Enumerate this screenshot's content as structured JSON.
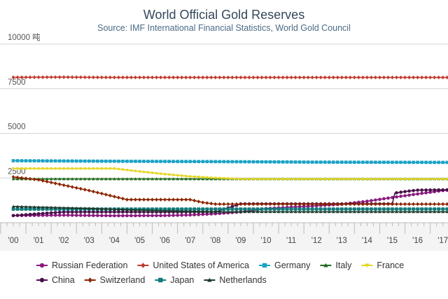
{
  "chart_data": {
    "type": "line",
    "title": "World Official Gold Reserves",
    "subtitle": "Source: IMF International Financial Statistics, World Gold Council",
    "ylabel": "10000 吨",
    "ylim": [
      0,
      10000
    ],
    "yticks": [
      2500,
      5000,
      7500,
      10000
    ],
    "ytick_labels": [
      "2500",
      "5000",
      "7500",
      "10000 吨"
    ],
    "x_start": 2000,
    "x_end": 2017.3,
    "xticks": [
      2000,
      2001,
      2002,
      2003,
      2004,
      2005,
      2006,
      2007,
      2008,
      2009,
      2010,
      2011,
      2012,
      2013,
      2014,
      2015,
      2016,
      2017
    ],
    "xtick_labels": [
      "'00",
      "'01",
      "'02",
      "'03",
      "'04",
      "'05",
      "'06",
      "'07",
      "'08",
      "'09",
      "'10",
      "'11",
      "'12",
      "'13",
      "'14",
      "'15",
      "'16",
      "'17"
    ],
    "grid": "horizontal",
    "legend_position": "bottom",
    "series": [
      {
        "name": "Russian Federation",
        "color": "#8b1a7f",
        "marker": "circle",
        "points": [
          [
            2000,
            400
          ],
          [
            2002,
            420
          ],
          [
            2004,
            390
          ],
          [
            2006,
            400
          ],
          [
            2007,
            430
          ],
          [
            2008,
            500
          ],
          [
            2009,
            600
          ],
          [
            2010,
            790
          ],
          [
            2011,
            870
          ],
          [
            2012,
            950
          ],
          [
            2013,
            1030
          ],
          [
            2014,
            1200
          ],
          [
            2015,
            1410
          ],
          [
            2016,
            1610
          ],
          [
            2017,
            1800
          ],
          [
            2017.3,
            1830
          ]
        ]
      },
      {
        "name": "United States of America",
        "color": "#c0392b",
        "marker": "diamond",
        "points": [
          [
            2000,
            8140
          ],
          [
            2002,
            8150
          ],
          [
            2004,
            8135
          ],
          [
            2017.3,
            8134
          ]
        ]
      },
      {
        "name": "Germany",
        "color": "#1ba3c6",
        "marker": "square",
        "points": [
          [
            2000,
            3470
          ],
          [
            2004,
            3440
          ],
          [
            2008,
            3420
          ],
          [
            2012,
            3390
          ],
          [
            2017.3,
            3375
          ]
        ]
      },
      {
        "name": "Italy",
        "color": "#1d6b1d",
        "marker": "triangle",
        "points": [
          [
            2000,
            2450
          ],
          [
            2017.3,
            2450
          ]
        ]
      },
      {
        "name": "France",
        "color": "#e3d61f",
        "marker": "triangle-down",
        "points": [
          [
            2000,
            3025
          ],
          [
            2004,
            3025
          ],
          [
            2005,
            2860
          ],
          [
            2006,
            2710
          ],
          [
            2007,
            2580
          ],
          [
            2008,
            2500
          ],
          [
            2009,
            2440
          ],
          [
            2010,
            2435
          ],
          [
            2017.3,
            2436
          ]
        ]
      },
      {
        "name": "China",
        "color": "#4a0f4a",
        "marker": "circle",
        "points": [
          [
            2000,
            395
          ],
          [
            2001,
            500
          ],
          [
            2002,
            600
          ],
          [
            2008,
            600
          ],
          [
            2009,
            1054
          ],
          [
            2015,
            1054
          ],
          [
            2015.1,
            1660
          ],
          [
            2015.6,
            1760
          ],
          [
            2016,
            1823
          ],
          [
            2017.3,
            1843
          ]
        ]
      },
      {
        "name": "Switzerland",
        "color": "#8b2500",
        "marker": "diamond",
        "points": [
          [
            2000,
            2560
          ],
          [
            2001,
            2400
          ],
          [
            2002,
            2100
          ],
          [
            2003,
            1800
          ],
          [
            2004,
            1460
          ],
          [
            2004.5,
            1290
          ],
          [
            2005,
            1290
          ],
          [
            2007,
            1290
          ],
          [
            2007.5,
            1130
          ],
          [
            2008,
            1040
          ],
          [
            2017.3,
            1040
          ]
        ]
      },
      {
        "name": "Japan",
        "color": "#117a7a",
        "marker": "square",
        "points": [
          [
            2000,
            760
          ],
          [
            2017.3,
            765
          ]
        ]
      },
      {
        "name": "Netherlands",
        "color": "#1b3b2b",
        "marker": "triangle",
        "points": [
          [
            2000,
            910
          ],
          [
            2003,
            800
          ],
          [
            2005,
            700
          ],
          [
            2007,
            640
          ],
          [
            2008,
            612
          ],
          [
            2017.3,
            612
          ]
        ]
      }
    ]
  }
}
